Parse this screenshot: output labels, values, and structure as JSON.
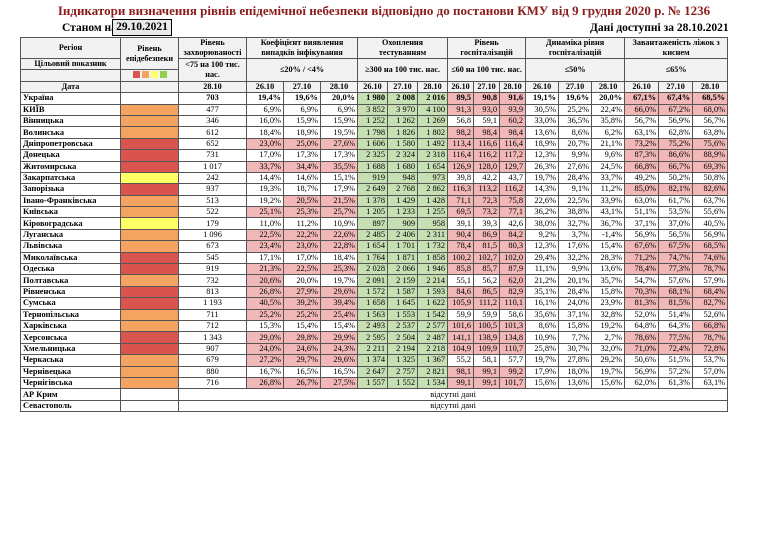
{
  "title": "Індикатори визначення рівнів епідемічної небезпеки відповідно до постанови КМУ від 9 грудня 2020 р. № 1236",
  "as_of_label": "Станом на",
  "as_of_value": "29.10.2021",
  "data_available": "Дані доступні за  28.10.2021",
  "headers": {
    "region": "Регіон",
    "level": "Рівень епідебезпеки",
    "incidence": "Рівень захворюваності",
    "detection": "Коефіцієнт виявлення випадків інфікування",
    "testing": "Охоплення тестуванням",
    "hosp": "Рівень госпіталізацій",
    "dynamics": "Динаміка рівня госпіталізацій",
    "oxygen": "Завантаженість ліжок з киснем",
    "target": "Цільовий показник",
    "incidence_target": "<75 на 100 тис. нас.",
    "detection_target": "≤20% / <4%",
    "testing_target": "≥300 на 100 тис. нас.",
    "hosp_target": "≤60 на 100 тис. нас.",
    "dynamics_target": "≤50%",
    "oxygen_target": "≤65%",
    "date_label": "Дата",
    "d1": "26.10",
    "d2": "27.10",
    "d3": "28.10"
  },
  "legend_colors": [
    "#d9534f",
    "#f4a460",
    "#ffff66",
    "#92d050"
  ],
  "rows": [
    {
      "name": "Україна",
      "lvl": "",
      "inc": "703",
      "det": [
        "19,4%",
        "19,6%",
        "20,0%"
      ],
      "tst": [
        "1 980",
        "2 008",
        "2 016"
      ],
      "hsp": [
        "89,5",
        "90,8",
        "91,6"
      ],
      "dyn": [
        "19,1%",
        "19,6%",
        "20,0%"
      ],
      "oxy": [
        "67,1%",
        "67,4%",
        "68,5%"
      ]
    },
    {
      "name": "КИЇВ",
      "lvl": "lo",
      "inc": "477",
      "det": [
        "6,9%",
        "6,9%",
        "6,9%"
      ],
      "tst": [
        "3 852",
        "3 970",
        "4 100"
      ],
      "hsp": [
        "91,3",
        "93,0",
        "93,9"
      ],
      "dyn": [
        "30,5%",
        "25,2%",
        "22,4%"
      ],
      "oxy": [
        "66,0%",
        "67,2%",
        "68,0%"
      ]
    },
    {
      "name": "Вінницька",
      "lvl": "lo",
      "inc": "346",
      "det": [
        "16,0%",
        "15,9%",
        "15,9%"
      ],
      "tst": [
        "1 252",
        "1 262",
        "1 269"
      ],
      "hsp": [
        "56,8",
        "59,1",
        "60,2"
      ],
      "dyn": [
        "33,0%",
        "36,5%",
        "35,8%"
      ],
      "oxy": [
        "56,7%",
        "56,9%",
        "56,7%"
      ]
    },
    {
      "name": "Волинська",
      "lvl": "lo",
      "inc": "612",
      "det": [
        "18,4%",
        "18,9%",
        "19,5%"
      ],
      "tst": [
        "1 798",
        "1 826",
        "1 802"
      ],
      "hsp": [
        "98,2",
        "98,4",
        "98,4"
      ],
      "dyn": [
        "13,6%",
        "8,6%",
        "6,2%"
      ],
      "oxy": [
        "63,1%",
        "62,8%",
        "63,8%"
      ]
    },
    {
      "name": "Дніпропетровська",
      "lvl": "lr",
      "inc": "652",
      "det": [
        "23,0%",
        "25,0%",
        "27,6%"
      ],
      "tst": [
        "1 606",
        "1 580",
        "1 492"
      ],
      "hsp": [
        "113,4",
        "116,6",
        "116,4"
      ],
      "dyn": [
        "18,9%",
        "20,7%",
        "21,1%"
      ],
      "oxy": [
        "73,2%",
        "75,2%",
        "75,6%"
      ]
    },
    {
      "name": "Донецька",
      "lvl": "lr",
      "inc": "731",
      "det": [
        "17,0%",
        "17,3%",
        "17,3%"
      ],
      "tst": [
        "2 325",
        "2 324",
        "2 318"
      ],
      "hsp": [
        "116,4",
        "116,2",
        "117,2"
      ],
      "dyn": [
        "12,3%",
        "9,9%",
        "9,6%"
      ],
      "oxy": [
        "87,3%",
        "86,6%",
        "88,9%"
      ]
    },
    {
      "name": "Житомирська",
      "lvl": "lr",
      "inc": "1 017",
      "det": [
        "33,7%",
        "34,4%",
        "35,5%"
      ],
      "tst": [
        "1 688",
        "1 680",
        "1 654"
      ],
      "hsp": [
        "126,9",
        "128,0",
        "129,7"
      ],
      "dyn": [
        "26,3%",
        "27,6%",
        "24,5%"
      ],
      "oxy": [
        "66,8%",
        "66,7%",
        "69,3%"
      ]
    },
    {
      "name": "Закарпатська",
      "lvl": "ly",
      "inc": "242",
      "det": [
        "14,4%",
        "14,6%",
        "15,1%"
      ],
      "tst": [
        "919",
        "948",
        "973"
      ],
      "hsp": [
        "39,8",
        "42,2",
        "43,7"
      ],
      "dyn": [
        "19,7%",
        "28,4%",
        "33,7%"
      ],
      "oxy": [
        "49,2%",
        "50,2%",
        "50,8%"
      ]
    },
    {
      "name": "Запорізька",
      "lvl": "lr",
      "inc": "937",
      "det": [
        "19,3%",
        "18,7%",
        "17,9%"
      ],
      "tst": [
        "2 649",
        "2 768",
        "2 862"
      ],
      "hsp": [
        "116,3",
        "113,2",
        "116,2"
      ],
      "dyn": [
        "14,3%",
        "9,1%",
        "11,2%"
      ],
      "oxy": [
        "85,0%",
        "82,1%",
        "82,6%"
      ]
    },
    {
      "name": "Івано-Франківська",
      "lvl": "lo",
      "inc": "513",
      "det": [
        "19,2%",
        "20,5%",
        "21,5%"
      ],
      "tst": [
        "1 378",
        "1 429",
        "1 428"
      ],
      "hsp": [
        "71,1",
        "72,3",
        "75,8"
      ],
      "dyn": [
        "22,6%",
        "22,5%",
        "33,9%"
      ],
      "oxy": [
        "63,0%",
        "61,7%",
        "63,7%"
      ]
    },
    {
      "name": "Київська",
      "lvl": "lo",
      "inc": "522",
      "det": [
        "25,1%",
        "25,3%",
        "25,7%"
      ],
      "tst": [
        "1 205",
        "1 233",
        "1 255"
      ],
      "hsp": [
        "69,5",
        "73,2",
        "77,1"
      ],
      "dyn": [
        "36,2%",
        "38,8%",
        "43,1%"
      ],
      "oxy": [
        "51,1%",
        "53,5%",
        "55,6%"
      ]
    },
    {
      "name": "Кіровоградська",
      "lvl": "ly",
      "inc": "179",
      "det": [
        "11,0%",
        "11,2%",
        "10,9%"
      ],
      "tst": [
        "897",
        "909",
        "958"
      ],
      "hsp": [
        "39,1",
        "39,3",
        "42,6"
      ],
      "dyn": [
        "38,0%",
        "32,7%",
        "36,7%"
      ],
      "oxy": [
        "37,1%",
        "37,0%",
        "40,5%"
      ]
    },
    {
      "name": "Луганська",
      "lvl": "lo",
      "inc": "1 096",
      "det": [
        "22,5%",
        "22,2%",
        "22,6%"
      ],
      "tst": [
        "2 485",
        "2 406",
        "2 311"
      ],
      "hsp": [
        "90,4",
        "86,9",
        "84,2"
      ],
      "dyn": [
        "9,2%",
        "3,7%",
        "-1,4%"
      ],
      "oxy": [
        "56,9%",
        "56,5%",
        "56,9%"
      ]
    },
    {
      "name": "Львівська",
      "lvl": "lo",
      "inc": "673",
      "det": [
        "23,4%",
        "23,0%",
        "22,8%"
      ],
      "tst": [
        "1 654",
        "1 701",
        "1 732"
      ],
      "hsp": [
        "78,4",
        "81,5",
        "80,3"
      ],
      "dyn": [
        "12,3%",
        "17,6%",
        "15,4%"
      ],
      "oxy": [
        "67,6%",
        "67,5%",
        "68,5%"
      ]
    },
    {
      "name": "Миколаївська",
      "lvl": "lr",
      "inc": "545",
      "det": [
        "17,1%",
        "17,0%",
        "18,4%"
      ],
      "tst": [
        "1 764",
        "1 871",
        "1 858"
      ],
      "hsp": [
        "100,2",
        "102,7",
        "102,0"
      ],
      "dyn": [
        "29,4%",
        "32,2%",
        "28,3%"
      ],
      "oxy": [
        "71,2%",
        "74,7%",
        "74,6%"
      ]
    },
    {
      "name": "Одеська",
      "lvl": "lr",
      "inc": "919",
      "det": [
        "21,3%",
        "22,5%",
        "25,3%"
      ],
      "tst": [
        "2 028",
        "2 066",
        "1 946"
      ],
      "hsp": [
        "85,8",
        "85,7",
        "87,9"
      ],
      "dyn": [
        "11,1%",
        "9,9%",
        "13,6%"
      ],
      "oxy": [
        "78,4%",
        "77,3%",
        "78,7%"
      ]
    },
    {
      "name": "Полтавська",
      "lvl": "lo",
      "inc": "732",
      "det": [
        "20,6%",
        "20,0%",
        "19,7%"
      ],
      "tst": [
        "2 091",
        "2 159",
        "2 214"
      ],
      "hsp": [
        "55,1",
        "56,2",
        "62,0"
      ],
      "dyn": [
        "21,2%",
        "20,1%",
        "35,7%"
      ],
      "oxy": [
        "54,7%",
        "57,6%",
        "57,9%"
      ]
    },
    {
      "name": "Рівненська",
      "lvl": "lr",
      "inc": "813",
      "det": [
        "26,8%",
        "27,9%",
        "29,6%"
      ],
      "tst": [
        "1 572",
        "1 587",
        "1 593"
      ],
      "hsp": [
        "84,6",
        "86,5",
        "82,9"
      ],
      "dyn": [
        "35,1%",
        "28,4%",
        "15,8%"
      ],
      "oxy": [
        "70,3%",
        "68,1%",
        "68,4%"
      ]
    },
    {
      "name": "Сумська",
      "lvl": "lr",
      "inc": "1 193",
      "det": [
        "40,5%",
        "39,2%",
        "39,4%"
      ],
      "tst": [
        "1 658",
        "1 645",
        "1 622"
      ],
      "hsp": [
        "105,9",
        "111,2",
        "110,1"
      ],
      "dyn": [
        "16,1%",
        "24,0%",
        "23,9%"
      ],
      "oxy": [
        "81,3%",
        "81,5%",
        "82,7%"
      ]
    },
    {
      "name": "Тернопільська",
      "lvl": "lo",
      "inc": "711",
      "det": [
        "25,2%",
        "25,2%",
        "25,4%"
      ],
      "tst": [
        "1 563",
        "1 553",
        "1 542"
      ],
      "hsp": [
        "59,9",
        "59,9",
        "58,6"
      ],
      "dyn": [
        "35,6%",
        "37,1%",
        "32,8%"
      ],
      "oxy": [
        "52,0%",
        "51,4%",
        "52,6%"
      ]
    },
    {
      "name": "Харківська",
      "lvl": "lo",
      "inc": "712",
      "det": [
        "15,3%",
        "15,4%",
        "15,4%"
      ],
      "tst": [
        "2 493",
        "2 537",
        "2 577"
      ],
      "hsp": [
        "101,6",
        "100,5",
        "101,3"
      ],
      "dyn": [
        "8,6%",
        "15,8%",
        "19,2%"
      ],
      "oxy": [
        "64,8%",
        "64,3%",
        "66,8%"
      ]
    },
    {
      "name": "Херсонська",
      "lvl": "lr",
      "inc": "1 343",
      "det": [
        "29,0%",
        "29,8%",
        "29,9%"
      ],
      "tst": [
        "2 595",
        "2 504",
        "2 487"
      ],
      "hsp": [
        "141,1",
        "138,9",
        "134,8"
      ],
      "dyn": [
        "10,9%",
        "7,7%",
        "2,7%"
      ],
      "oxy": [
        "78,6%",
        "77,5%",
        "78,7%"
      ]
    },
    {
      "name": "Хмельницька",
      "lvl": "lr",
      "inc": "907",
      "det": [
        "24,0%",
        "24,6%",
        "24,3%"
      ],
      "tst": [
        "2 211",
        "2 194",
        "2 218"
      ],
      "hsp": [
        "104,9",
        "109,9",
        "110,7"
      ],
      "dyn": [
        "25,8%",
        "30,7%",
        "32,0%"
      ],
      "oxy": [
        "71,0%",
        "72,4%",
        "72,8%"
      ]
    },
    {
      "name": "Черкаська",
      "lvl": "lo",
      "inc": "679",
      "det": [
        "27,2%",
        "29,7%",
        "29,6%"
      ],
      "tst": [
        "1 374",
        "1 325",
        "1 367"
      ],
      "hsp": [
        "55,2",
        "58,1",
        "57,7"
      ],
      "dyn": [
        "19,7%",
        "27,8%",
        "29,2%"
      ],
      "oxy": [
        "50,6%",
        "51,5%",
        "53,7%"
      ]
    },
    {
      "name": "Чернівецька",
      "lvl": "lo",
      "inc": "880",
      "det": [
        "16,7%",
        "16,5%",
        "16,5%"
      ],
      "tst": [
        "2 647",
        "2 757",
        "2 821"
      ],
      "hsp": [
        "98,1",
        "99,1",
        "99,2"
      ],
      "dyn": [
        "17,9%",
        "18,0%",
        "19,7%"
      ],
      "oxy": [
        "56,9%",
        "57,2%",
        "57,0%"
      ]
    },
    {
      "name": "Чернігівська",
      "lvl": "lo",
      "inc": "716",
      "det": [
        "26,8%",
        "26,7%",
        "27,5%"
      ],
      "tst": [
        "1 557",
        "1 552",
        "1 534"
      ],
      "hsp": [
        "99,1",
        "99,1",
        "101,7"
      ],
      "dyn": [
        "15,6%",
        "13,6%",
        "15,6%"
      ],
      "oxy": [
        "62,0%",
        "61,3%",
        "63,1%"
      ]
    }
  ],
  "missing_rows": [
    {
      "name": "АР Крим",
      "note": "відсутні дані"
    },
    {
      "name": "Севастополь",
      "note": "відсутні дані"
    }
  ]
}
